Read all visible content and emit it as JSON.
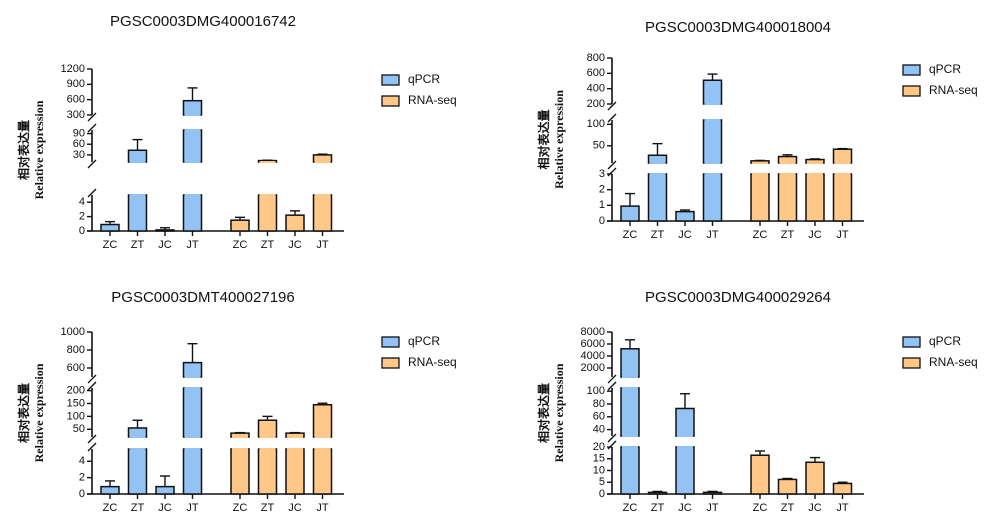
{
  "figure": {
    "ylabel_cn": "相对表达量",
    "ylabel_en": "Relative expression",
    "legend": [
      {
        "name": "qPCR",
        "color": "#93C2F5"
      },
      {
        "name": "RNA-seq",
        "color": "#FFC788"
      }
    ]
  },
  "chart_data": [
    {
      "type": "bar",
      "title": "PGSC0003DMG400016742",
      "xlabel": "",
      "ylabel": "相对表达量 Relative expression",
      "categories": [
        "ZC",
        "ZT",
        "JC",
        "JT"
      ],
      "legend_position": "right",
      "axis_segments": [
        {
          "range": [
            0,
            5
          ],
          "ticks": [
            0,
            2,
            4
          ]
        },
        {
          "range": [
            10,
            100
          ],
          "ticks": [
            30,
            60,
            90
          ]
        },
        {
          "range": [
            300,
            1200
          ],
          "ticks": [
            300,
            600,
            900,
            1200
          ]
        }
      ],
      "series": [
        {
          "name": "qPCR",
          "values": [
            0.9,
            43,
            0.15,
            580
          ],
          "errors": [
            0.4,
            30,
            0.3,
            250
          ]
        },
        {
          "name": "RNA-seq",
          "values": [
            1.5,
            14,
            2.2,
            30
          ],
          "errors": [
            0.4,
            1,
            0.6,
            2
          ]
        }
      ]
    },
    {
      "type": "bar",
      "title": "PGSC0003DMG400018004",
      "xlabel": "",
      "ylabel": "相对表达量 Relative expression",
      "categories": [
        "ZC",
        "ZT",
        "JC",
        "JT"
      ],
      "legend_position": "right",
      "axis_segments": [
        {
          "range": [
            0,
            3
          ],
          "ticks": [
            0,
            1,
            2,
            3
          ]
        },
        {
          "range": [
            10,
            110
          ],
          "ticks": [
            50,
            100
          ]
        },
        {
          "range": [
            200,
            800
          ],
          "ticks": [
            200,
            400,
            600,
            800
          ]
        }
      ],
      "series": [
        {
          "name": "qPCR",
          "values": [
            0.95,
            28,
            0.6,
            510
          ],
          "errors": [
            0.8,
            27,
            0.1,
            80
          ]
        },
        {
          "name": "RNA-seq",
          "values": [
            15,
            25,
            18,
            42
          ],
          "errors": [
            1,
            4,
            1.5,
            1.5
          ]
        }
      ]
    },
    {
      "type": "bar",
      "title": "PGSC0003DMT400027196",
      "xlabel": "",
      "ylabel": "相对表达量 Relative expression",
      "categories": [
        "ZC",
        "ZT",
        "JC",
        "JT"
      ],
      "legend_position": "right",
      "axis_segments": [
        {
          "range": [
            0,
            5.5
          ],
          "ticks": [
            0,
            2,
            4
          ]
        },
        {
          "range": [
            20,
            210
          ],
          "ticks": [
            50,
            100,
            150,
            200
          ]
        },
        {
          "range": [
            500,
            1000
          ],
          "ticks": [
            600,
            800,
            1000
          ]
        }
      ],
      "series": [
        {
          "name": "qPCR",
          "values": [
            0.9,
            55,
            0.9,
            660
          ],
          "errors": [
            0.7,
            30,
            1.3,
            210
          ]
        },
        {
          "name": "RNA-seq",
          "values": [
            35,
            85,
            35,
            145
          ],
          "errors": [
            2,
            15,
            2,
            6
          ]
        }
      ]
    },
    {
      "type": "bar",
      "title": "PGSC0003DMG400029264",
      "xlabel": "",
      "ylabel": "相对表达量 Relative expression",
      "categories": [
        "ZC",
        "ZT",
        "JC",
        "JT"
      ],
      "legend_position": "right",
      "axis_segments": [
        {
          "range": [
            0,
            20
          ],
          "ticks": [
            0,
            5,
            10,
            15,
            20
          ]
        },
        {
          "range": [
            30,
            105
          ],
          "ticks": [
            40,
            60,
            80,
            100
          ]
        },
        {
          "range": [
            500,
            8000
          ],
          "ticks": [
            2000,
            4000,
            6000,
            8000
          ]
        }
      ],
      "series": [
        {
          "name": "qPCR",
          "values": [
            5200,
            0.7,
            73,
            0.7
          ],
          "errors": [
            1500,
            0.4,
            23,
            0.4
          ]
        },
        {
          "name": "RNA-seq",
          "values": [
            16.5,
            6.2,
            13.5,
            4.5
          ],
          "errors": [
            1.8,
            0.4,
            2,
            0.5
          ]
        }
      ]
    }
  ]
}
